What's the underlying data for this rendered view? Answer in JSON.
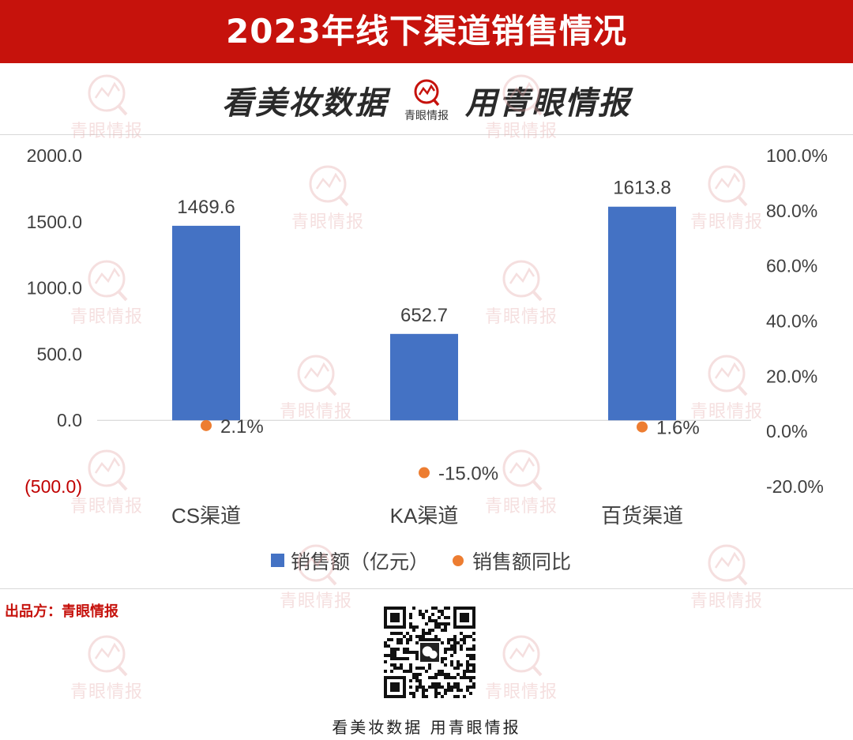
{
  "header": {
    "title": "2023年线下渠道销售情况"
  },
  "slogan": {
    "left": "看美妆数据",
    "logo_text": "青眼情报",
    "right": "用青眼情报"
  },
  "watermark": {
    "text": "青眼情报"
  },
  "colors": {
    "banner": "#c6120c",
    "bar": "#4472c4",
    "dot": "#ed7d31",
    "negative": "#c00000"
  },
  "chart_data": {
    "type": "bar",
    "categories": [
      "CS渠道",
      "KA渠道",
      "百货渠道"
    ],
    "series": [
      {
        "name": "销售额（亿元）",
        "type": "bar",
        "axis": "left",
        "values": [
          1469.6,
          652.7,
          1613.8
        ],
        "labels": [
          "1469.6",
          "652.7",
          "1613.8"
        ]
      },
      {
        "name": "销售额同比",
        "type": "scatter",
        "axis": "right",
        "values": [
          2.1,
          -15.0,
          1.6
        ],
        "labels": [
          "2.1%",
          "-15.0%",
          "1.6%"
        ]
      }
    ],
    "left_axis": {
      "ylim": [
        -500,
        2000
      ],
      "ticks": [
        2000,
        1500,
        1000,
        500,
        0,
        -500
      ],
      "tick_labels": [
        "2000.0",
        "1500.0",
        "1000.0",
        "500.0",
        "0.0",
        "(500.0)"
      ]
    },
    "right_axis": {
      "ylim": [
        -20,
        100
      ],
      "tick_labels": [
        "100.0%",
        "80.0%",
        "60.0%",
        "40.0%",
        "20.0%",
        "0.0%",
        "-20.0%"
      ]
    },
    "legend": {
      "placement": "bottom",
      "bar_label": "销售额（亿元）",
      "dot_label": "销售额同比"
    },
    "grid": false
  },
  "footer": {
    "source": "出品方：青眼情报",
    "slogan": "看美妆数据 用青眼情报"
  }
}
